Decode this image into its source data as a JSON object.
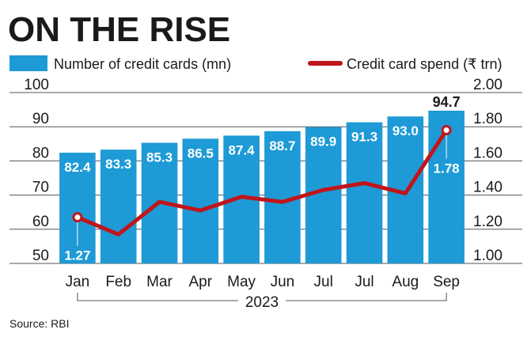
{
  "chart_data": {
    "type": "bar-line",
    "title": "ON THE RISE",
    "categories": [
      "Jan",
      "Feb",
      "Mar",
      "Apr",
      "May",
      "Jun",
      "Jul",
      "Jul",
      "Aug",
      "Sep"
    ],
    "group_label": "2023",
    "series": [
      {
        "name": "Number of credit cards (mn)",
        "type": "bar",
        "color": "#1e9ad6",
        "values": [
          82.4,
          83.3,
          85.3,
          86.5,
          87.4,
          88.7,
          89.9,
          91.3,
          93.0,
          94.7
        ],
        "value_labels": [
          "82.4",
          "83.3",
          "85.3",
          "86.5",
          "87.4",
          "88.7",
          "89.9",
          "91.3",
          "93.0",
          "94.7"
        ]
      },
      {
        "name": "Credit card spend (₹ trn)",
        "type": "line",
        "axis": "y2",
        "color": "#c0151b",
        "values": [
          1.27,
          1.17,
          1.36,
          1.31,
          1.39,
          1.36,
          1.43,
          1.47,
          1.41,
          1.78
        ],
        "value_labels": [
          "1.27",
          null,
          null,
          null,
          null,
          null,
          null,
          null,
          null,
          "1.78"
        ]
      }
    ],
    "ylim": [
      50,
      100
    ],
    "yticks": [
      50,
      60,
      70,
      80,
      90,
      100
    ],
    "y2lim": [
      1,
      2
    ],
    "y2ticks": [
      {
        "value": 1,
        "label": "1.00"
      },
      {
        "value": 1.2,
        "label": "1.20"
      },
      {
        "value": 1.4,
        "label": "1.40"
      },
      {
        "value": 1.6,
        "label": "1.60"
      },
      {
        "value": 1.8,
        "label": "1.80"
      },
      {
        "value": 2,
        "label": "2.00"
      }
    ],
    "grid": true,
    "source": "Source: RBI"
  }
}
